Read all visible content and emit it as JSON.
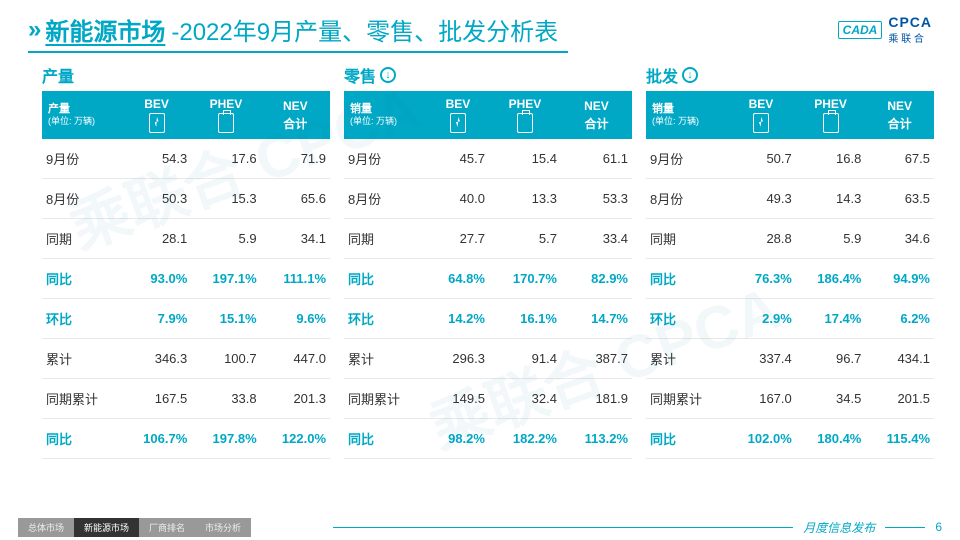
{
  "header": {
    "chevron": "»",
    "title_main": "新能源市场",
    "title_sep": "-",
    "title_sub": "2022年9月产量、零售、批发分析表",
    "logo_cada": "CADA",
    "logo_cpca_en": "CPCA",
    "logo_cpca_cn": "乘 联 合"
  },
  "columns": {
    "bev": "BEV",
    "phev": "PHEV",
    "nev": "NEV\n合计"
  },
  "row_labels": [
    "9月份",
    "8月份",
    "同期",
    "同比",
    "环比",
    "累计",
    "同期累计",
    "同比"
  ],
  "row_teal": [
    false,
    false,
    false,
    true,
    true,
    false,
    false,
    true
  ],
  "panels": [
    {
      "title": "产量",
      "has_down_badge": false,
      "corner_label": "产量",
      "corner_unit": "(单位: 万辆)",
      "rows": [
        [
          "54.3",
          "17.6",
          "71.9"
        ],
        [
          "50.3",
          "15.3",
          "65.6"
        ],
        [
          "28.1",
          "5.9",
          "34.1"
        ],
        [
          "93.0%",
          "197.1%",
          "111.1%"
        ],
        [
          "7.9%",
          "15.1%",
          "9.6%"
        ],
        [
          "346.3",
          "100.7",
          "447.0"
        ],
        [
          "167.5",
          "33.8",
          "201.3"
        ],
        [
          "106.7%",
          "197.8%",
          "122.0%"
        ]
      ]
    },
    {
      "title": "零售",
      "has_down_badge": true,
      "corner_label": "销量",
      "corner_unit": "(单位: 万辆)",
      "rows": [
        [
          "45.7",
          "15.4",
          "61.1"
        ],
        [
          "40.0",
          "13.3",
          "53.3"
        ],
        [
          "27.7",
          "5.7",
          "33.4"
        ],
        [
          "64.8%",
          "170.7%",
          "82.9%"
        ],
        [
          "14.2%",
          "16.1%",
          "14.7%"
        ],
        [
          "296.3",
          "91.4",
          "387.7"
        ],
        [
          "149.5",
          "32.4",
          "181.9"
        ],
        [
          "98.2%",
          "182.2%",
          "113.2%"
        ]
      ]
    },
    {
      "title": "批发",
      "has_down_badge": true,
      "corner_label": "销量",
      "corner_unit": "(单位: 万辆)",
      "rows": [
        [
          "50.7",
          "16.8",
          "67.5"
        ],
        [
          "49.3",
          "14.3",
          "63.5"
        ],
        [
          "28.8",
          "5.9",
          "34.6"
        ],
        [
          "76.3%",
          "186.4%",
          "94.9%"
        ],
        [
          "2.9%",
          "17.4%",
          "6.2%"
        ],
        [
          "337.4",
          "96.7",
          "434.1"
        ],
        [
          "167.0",
          "34.5",
          "201.5"
        ],
        [
          "102.0%",
          "180.4%",
          "115.4%"
        ]
      ]
    }
  ],
  "footer": {
    "tabs": [
      "总体市场",
      "新能源市场",
      "厂商排名",
      "市场分析"
    ],
    "active_tab": 1,
    "label": "月度信息发布",
    "page": "6"
  },
  "colors": {
    "accent": "#00a8c6",
    "text": "#333333",
    "grid": "#e8e8e8",
    "background": "#ffffff"
  }
}
